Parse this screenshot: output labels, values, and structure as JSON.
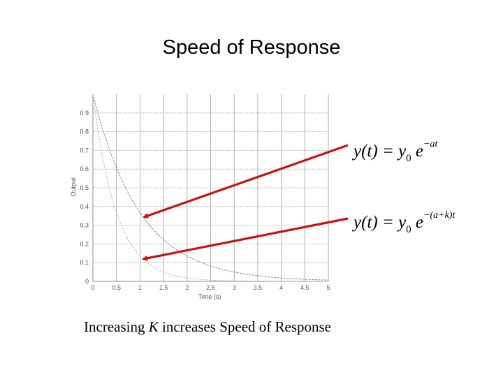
{
  "slide": {
    "title": "Speed of Response",
    "caption": {
      "part1": "Increasing ",
      "k": "K",
      "part2": " increases Speed of Response"
    }
  },
  "annotations": {
    "eq1": {
      "lhs": "y(t) = y",
      "sub": "0",
      "e": " e",
      "exp": "−at"
    },
    "eq2": {
      "lhs": "y(t) = y",
      "sub": "0",
      "e": " e",
      "exp": "−(a+k)t"
    },
    "arrow_color": "#cc1111"
  },
  "chart_data": {
    "type": "line",
    "title": "",
    "xlabel": "Time (s)",
    "ylabel": "Output",
    "xlim": [
      0,
      5
    ],
    "ylim": [
      0,
      1
    ],
    "grid": true,
    "x_ticks": [
      "0",
      "0.5",
      "1",
      "1.5",
      "2",
      "2.5",
      "3",
      "3.5",
      "4",
      "4.5",
      "5"
    ],
    "y_ticks": [
      "0",
      "0.1",
      "0.2",
      "0.3",
      "0.4",
      "0.5",
      "0.6",
      "0.7",
      "0.8",
      "0.9"
    ],
    "series": [
      {
        "rate": 1.0,
        "color": "#8a8a8a"
      },
      {
        "rate": 2.0,
        "color": "#b0b0b0"
      }
    ]
  }
}
